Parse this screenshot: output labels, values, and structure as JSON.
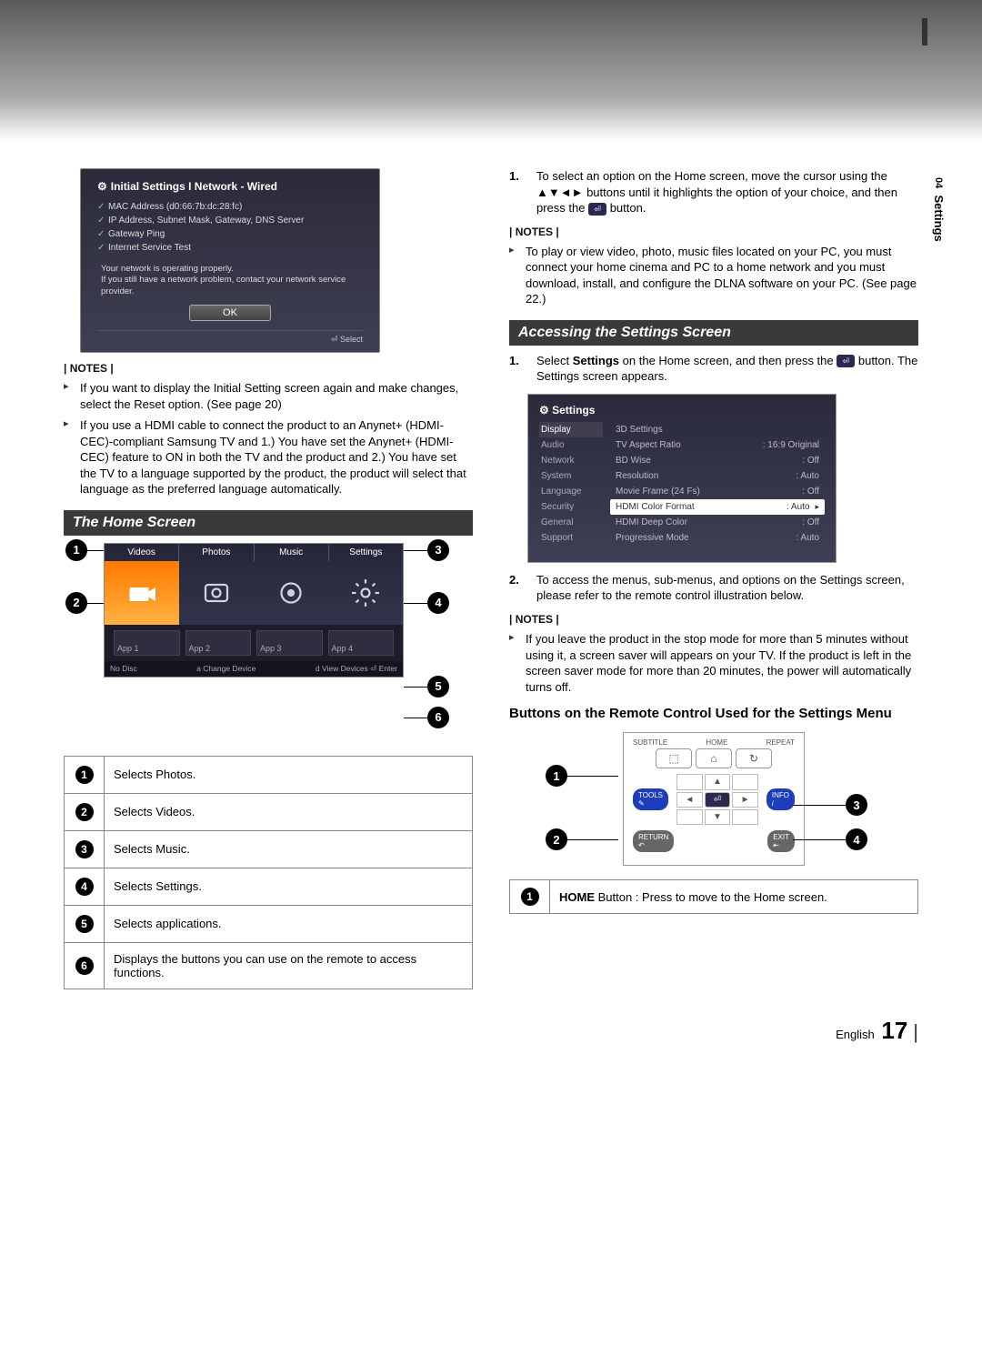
{
  "sideTab": {
    "num": "04",
    "label": "Settings"
  },
  "net": {
    "title": "Initial Settings I Network - Wired",
    "items": [
      "MAC Address (d0:66:7b:dc:28:fc)",
      "IP Address, Subnet Mask, Gateway, DNS Server",
      "Gateway Ping",
      "Internet Service Test"
    ],
    "msg1": "Your network is operating properly.",
    "msg2": "If you still have a network problem, contact your network service provider.",
    "ok": "OK",
    "select": "⏎ Select"
  },
  "leftNotes": {
    "label": "NOTES",
    "items": [
      "If you want to display the Initial Setting screen again and make changes, select the Reset option. (See page 20)",
      "If you use a HDMI cable to connect the product to an Anynet+ (HDMI-CEC)-compliant Samsung TV and 1.) You have set the Anynet+ (HDMI-CEC) feature to ON in both the TV and the product and 2.) You have set the TV to a language supported by the product, the product will select that language as the preferred language automatically."
    ]
  },
  "homeTitle": "The Home Screen",
  "home": {
    "tabs": [
      "Videos",
      "Photos",
      "Music",
      "Settings"
    ],
    "apps": [
      "App 1",
      "App 2",
      "App 3",
      "App 4"
    ],
    "footerLeft": "No Disc",
    "footerMid": "a Change Device",
    "footerRight": "d View Devices   ⏎ Enter"
  },
  "homeLegend": [
    "Selects Photos.",
    "Selects Videos.",
    "Selects Music.",
    "Selects Settings.",
    "Selects applications.",
    "Displays the buttons you can use on the remote to access functions."
  ],
  "rightStep1a": "To select an option on the Home screen, move the cursor using the ▲▼◄► buttons until it highlights the option of your choice, and then press the ",
  "rightStep1b": " button.",
  "rightNotes1": {
    "label": "NOTES",
    "items": [
      "To play or view video, photo, music files located on your PC, you must connect your home cinema and PC to a home network and you must download, install, and configure the DLNA software on your PC. (See page 22.)"
    ]
  },
  "accessTitle": "Accessing the Settings Screen",
  "accessStep1a": "Select ",
  "accessBold": "Settings",
  "accessStep1b": " on the Home screen, and then press the ",
  "accessStep1c": " button. The Settings screen appears.",
  "settingsPanel": {
    "title": "Settings",
    "nav": [
      "Display",
      "Audio",
      "Network",
      "System",
      "Language",
      "Security",
      "General",
      "Support"
    ],
    "rows": [
      {
        "k": "3D Settings",
        "v": ""
      },
      {
        "k": "TV Aspect Ratio",
        "v": ": 16:9 Original"
      },
      {
        "k": "BD Wise",
        "v": ": Off"
      },
      {
        "k": "Resolution",
        "v": ": Auto"
      },
      {
        "k": "Movie Frame (24 Fs)",
        "v": ": Off"
      },
      {
        "k": "HDMI Color Format",
        "v": ": Auto",
        "hl": true
      },
      {
        "k": "HDMI Deep Color",
        "v": ": Off"
      },
      {
        "k": "Progressive Mode",
        "v": ": Auto"
      }
    ]
  },
  "accessStep2": "To access the menus, sub-menus, and options on the Settings screen, please refer to the remote control illustration below.",
  "rightNotes2": {
    "label": "NOTES",
    "items": [
      "If you leave the product in the stop mode for more than 5 minutes without using it, a screen saver will appears on your TV. If the product is left in the screen saver mode for more than 20 minutes, the power will automatically turns off."
    ]
  },
  "remoteTitle": "Buttons on the Remote Control Used for the Settings Menu",
  "remote": {
    "topLabels": [
      "SUBTITLE",
      "HOME",
      "REPEAT"
    ],
    "tools": "TOOLS",
    "info": "INFO",
    "return": "RETURN",
    "exit": "EXIT"
  },
  "remoteLegend1a": "HOME",
  "remoteLegend1b": " Button : Press to move to the Home screen.",
  "footer": {
    "lang": "English",
    "page": "17"
  }
}
